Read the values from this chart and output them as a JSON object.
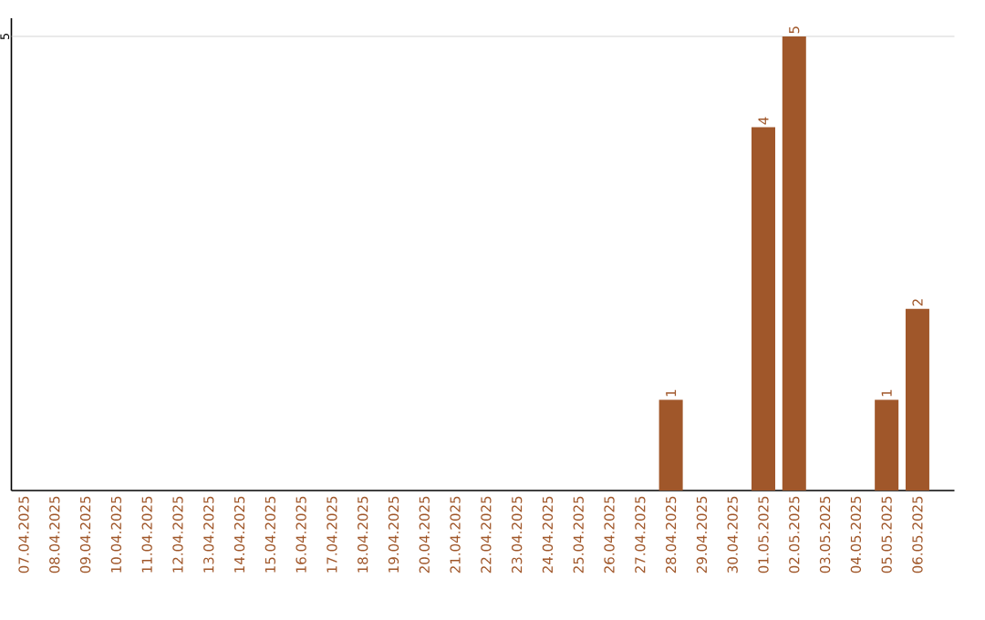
{
  "chart_data": {
    "type": "bar",
    "ylim": [
      0,
      5.2
    ],
    "categories": [
      "07.04.2025",
      "08.04.2025",
      "09.04.2025",
      "10.04.2025",
      "11.04.2025",
      "12.04.2025",
      "13.04.2025",
      "14.04.2025",
      "15.04.2025",
      "16.04.2025",
      "17.04.2025",
      "18.04.2025",
      "19.04.2025",
      "20.04.2025",
      "21.04.2025",
      "22.04.2025",
      "23.04.2025",
      "24.04.2025",
      "25.04.2025",
      "26.04.2025",
      "27.04.2025",
      "28.04.2025",
      "29.04.2025",
      "30.04.2025",
      "01.05.2025",
      "02.05.2025",
      "03.05.2025",
      "04.05.2025",
      "05.05.2025",
      "06.05.2025"
    ],
    "values": [
      null,
      null,
      null,
      null,
      null,
      null,
      null,
      null,
      null,
      null,
      null,
      null,
      null,
      null,
      null,
      null,
      null,
      null,
      null,
      null,
      null,
      1,
      null,
      null,
      4,
      5,
      null,
      null,
      1,
      2
    ],
    "value_labels": [
      null,
      null,
      null,
      null,
      null,
      null,
      null,
      null,
      null,
      null,
      null,
      null,
      null,
      null,
      null,
      null,
      null,
      null,
      null,
      null,
      null,
      "1",
      null,
      null,
      "4",
      "5",
      null,
      null,
      "1",
      "2"
    ],
    "color": "#a0572a",
    "ref_lines": [
      {
        "axis": "y",
        "value": 5,
        "label": "5",
        "color": "#cccccc"
      }
    ]
  }
}
